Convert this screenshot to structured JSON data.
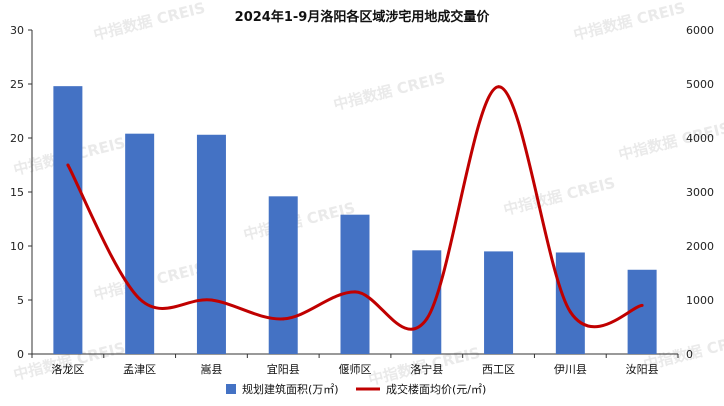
{
  "colors": {
    "bar": "#4472c4",
    "line": "#c00000",
    "axis": "#333333",
    "watermark": "#d9d9d9"
  },
  "watermark": "中指数据  CREIS",
  "chart_data": {
    "type": "bar",
    "title": "2024年1-9月洛阳各区域涉宅用地成交量价",
    "categories": [
      "洛龙区",
      "孟津区",
      "嵩县",
      "宜阳县",
      "偃师区",
      "洛宁县",
      "西工区",
      "伊川县",
      "汝阳县"
    ],
    "series": [
      {
        "name": "规划建筑面积(万㎡)",
        "type": "bar",
        "axis": "left",
        "values": [
          24.8,
          20.4,
          20.3,
          14.6,
          12.9,
          9.6,
          9.5,
          9.4,
          7.8
        ]
      },
      {
        "name": "成交楼面均价(元/㎡)",
        "type": "line",
        "smooth": true,
        "axis": "right",
        "values": [
          3500,
          1020,
          1000,
          650,
          1150,
          650,
          4950,
          780,
          900
        ]
      }
    ],
    "y_left": {
      "min": 0,
      "max": 30,
      "ticks": [
        "0",
        "5",
        "10",
        "15",
        "20",
        "25",
        "30"
      ]
    },
    "y_right": {
      "min": 0,
      "max": 6000,
      "ticks": [
        "0",
        "1000",
        "2000",
        "3000",
        "4000",
        "5000",
        "6000"
      ]
    },
    "grid": false,
    "legend_position": "bottom"
  }
}
